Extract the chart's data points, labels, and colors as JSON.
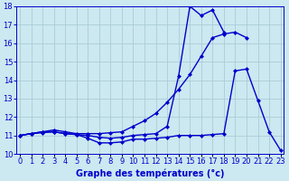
{
  "xlabel": "Graphe des températures (°c)",
  "hours": [
    0,
    1,
    2,
    3,
    4,
    5,
    6,
    7,
    8,
    9,
    10,
    11,
    12,
    13,
    14,
    15,
    16,
    17,
    18,
    19,
    20,
    21,
    22,
    23
  ],
  "line_top": [
    11.0,
    11.1,
    11.15,
    11.2,
    11.1,
    11.05,
    11.0,
    10.9,
    10.85,
    10.9,
    11.0,
    11.05,
    11.1,
    11.5,
    14.2,
    18.0,
    17.5,
    17.8,
    16.6,
    null,
    null,
    null,
    null,
    null
  ],
  "line_mid": [
    11.0,
    11.1,
    11.2,
    11.3,
    11.2,
    11.1,
    11.1,
    11.1,
    11.15,
    11.2,
    11.5,
    11.8,
    12.2,
    12.8,
    13.5,
    14.3,
    15.3,
    16.3,
    16.5,
    16.6,
    16.3,
    null,
    null,
    null
  ],
  "line_bot": [
    11.0,
    11.1,
    11.2,
    11.2,
    11.1,
    11.05,
    10.85,
    10.6,
    10.6,
    10.65,
    10.8,
    10.8,
    10.85,
    10.9,
    11.0,
    11.0,
    11.0,
    11.05,
    11.1,
    14.5,
    14.6,
    12.9,
    11.2,
    10.2
  ],
  "ylim": [
    10,
    18
  ],
  "xlim": [
    -0.3,
    23.3
  ],
  "yticks": [
    10,
    11,
    12,
    13,
    14,
    15,
    16,
    17,
    18
  ],
  "line_color": "#0000cc",
  "bg_color": "#cce8f0",
  "grid_color": "#aaccd8",
  "axis_label_color": "#0000cc",
  "tick_color": "#0000cc",
  "marker": "D",
  "markersize": 2.0,
  "linewidth": 1.0,
  "xlabel_fontsize": 7.0,
  "tick_fontsize": 6.0
}
